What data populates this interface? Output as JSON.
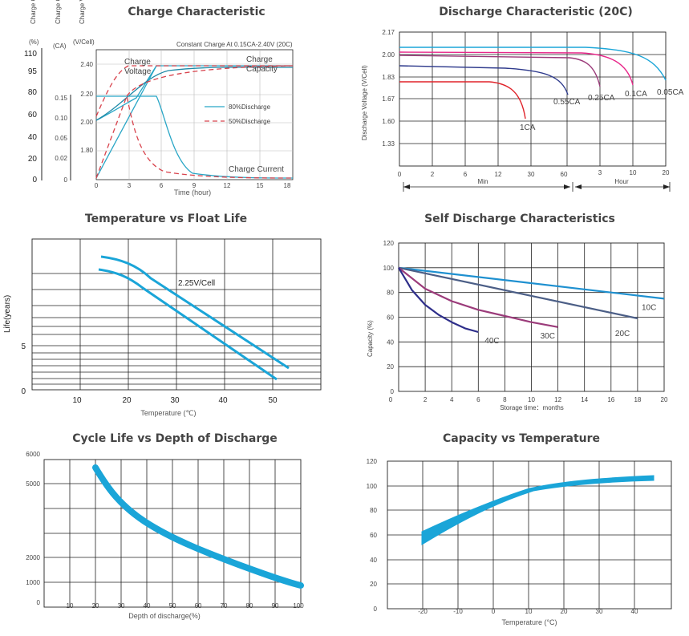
{
  "charge": {
    "title": "Charge Characteristic",
    "y_headers": [
      "Charge Capacity",
      "Charge Current",
      "Charge Voltage"
    ],
    "units": {
      "capacity": "(%)",
      "current": "(CA)",
      "voltage": "(V/Cell)"
    },
    "capacity_ticks": [
      "110",
      "95",
      "80",
      "60",
      "40",
      "20",
      "0"
    ],
    "current_ticks": [
      "0.15",
      "0.10",
      "0.05",
      "0.02",
      "0"
    ],
    "voltage_ticks": [
      "2.40",
      "2.20",
      "2.00",
      "1.80"
    ],
    "x_ticks": [
      "0",
      "3",
      "6",
      "9",
      "12",
      "15",
      "18"
    ],
    "xlabel": "Time (hour)",
    "note": "Constant Charge At 0.15CA-2.40V  (20C)",
    "labels": {
      "voltage": "Charge Voltage",
      "capacity": "Charge Capacity",
      "current": "Charge Current"
    },
    "legend": [
      {
        "name": "80%Discharge",
        "color": "#29a6c6",
        "dash": "solid"
      },
      {
        "name": "50%Discharge",
        "color": "#d8434d",
        "dash": "dashed"
      }
    ]
  },
  "discharge": {
    "title": "Discharge Characteristic (20C)",
    "ylabel": "Discharge Voltage (V/Cell)",
    "y_ticks": [
      "2.17",
      "2.00",
      "1.83",
      "1.67",
      "1.60",
      "1.33"
    ],
    "x_ticks_min": [
      "0",
      "2",
      "6",
      "12",
      "30",
      "60"
    ],
    "x_ticks_hour": [
      "3",
      "10",
      "20"
    ],
    "xlabel_min": "Min",
    "xlabel_hour": "Hour",
    "curves": [
      {
        "name": "1CA",
        "color": "#e0232a"
      },
      {
        "name": "0.55CA",
        "color": "#2e3a8c"
      },
      {
        "name": "0.25CA",
        "color": "#9b3b7a"
      },
      {
        "name": "0.1CA",
        "color": "#e8278a"
      },
      {
        "name": "0.05CA",
        "color": "#1aa5d8"
      }
    ]
  },
  "float": {
    "title": "Temperature vs Float Life",
    "ylabel": "Life(years)",
    "y_ticks": [
      "5",
      "0"
    ],
    "x_ticks": [
      "10",
      "20",
      "30",
      "40",
      "50"
    ],
    "xlabel": "Temperature (℃)",
    "band_label": "2.25V/Cell",
    "color": "#1aa5d8"
  },
  "self_discharge": {
    "title": "Self Discharge Characteristics",
    "ylabel": "Capacity (%)",
    "y_ticks": [
      "120",
      "100",
      "80",
      "60",
      "40",
      "20",
      "0"
    ],
    "x_ticks": [
      "2",
      "4",
      "6",
      "8",
      "10",
      "12",
      "14",
      "16",
      "18",
      "20"
    ],
    "x_zero": "0",
    "xlabel": "Storage time：months",
    "chart_data": {
      "type": "line",
      "xlim": [
        0,
        20
      ],
      "ylim": [
        0,
        120
      ],
      "series": [
        {
          "name": "10C",
          "color": "#1e90d0",
          "x": [
            0,
            20
          ],
          "y": [
            100,
            75
          ]
        },
        {
          "name": "20C",
          "color": "#4b5e86",
          "x": [
            0,
            18
          ],
          "y": [
            100,
            59
          ]
        },
        {
          "name": "30C",
          "color": "#9b3b7a",
          "x": [
            0,
            2,
            4,
            6,
            8,
            10,
            12
          ],
          "y": [
            100,
            83,
            73,
            66,
            61,
            56,
            52
          ]
        },
        {
          "name": "40C",
          "color": "#2e2e8a",
          "x": [
            0,
            1,
            2,
            3,
            4,
            5,
            6
          ],
          "y": [
            100,
            82,
            70,
            62,
            56,
            51,
            48
          ]
        }
      ]
    }
  },
  "cycle": {
    "title": "Cycle Life vs Depth of Discharge",
    "y_ticks": [
      "6000",
      "5000",
      "2000",
      "1000",
      "0"
    ],
    "x_ticks": [
      "10",
      "20",
      "30",
      "40",
      "50",
      "60",
      "70",
      "80",
      "90",
      "100"
    ],
    "xlabel": "Depth of discharge(%)",
    "color": "#1aa5d8"
  },
  "capacity_temp": {
    "title": "Capacity vs Temperature",
    "y_ticks": [
      "120",
      "100",
      "80",
      "60",
      "40",
      "20",
      "0"
    ],
    "x_ticks": [
      "-20",
      "-10",
      "0",
      "10",
      "20",
      "30",
      "40"
    ],
    "xlabel": "Temperature (°C)",
    "color": "#1aa5d8"
  }
}
